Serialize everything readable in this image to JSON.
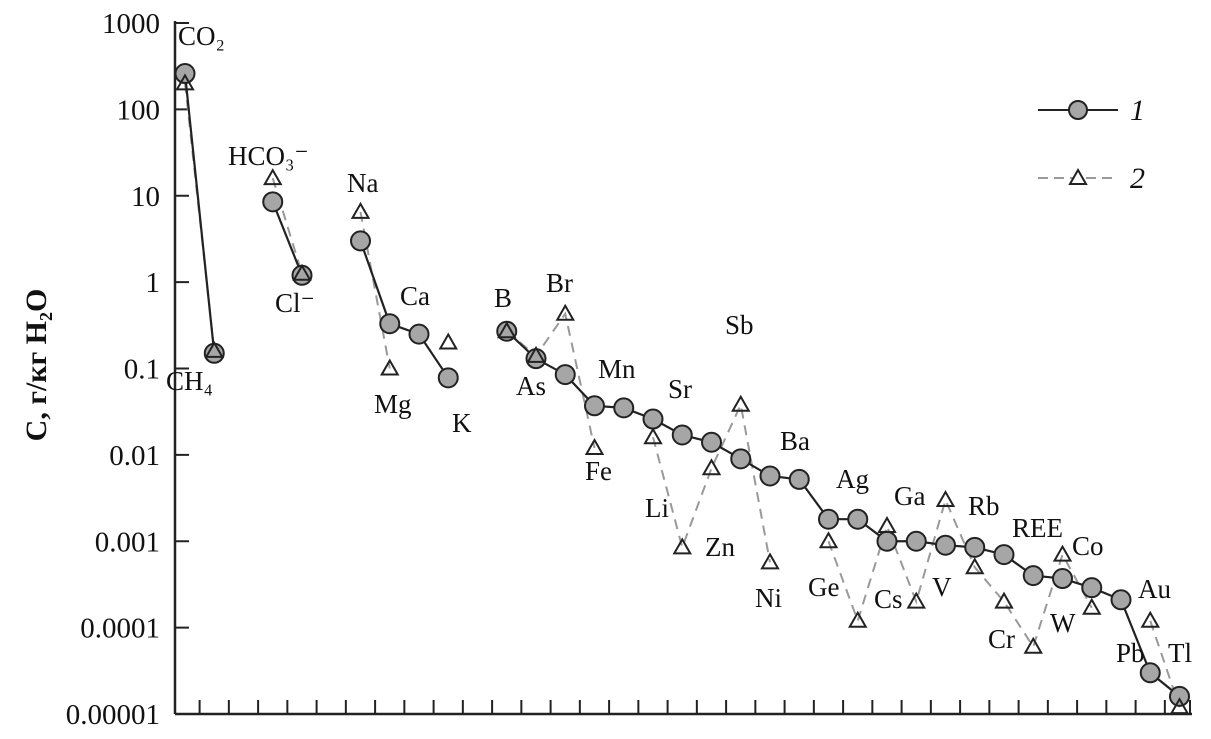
{
  "chart_data": {
    "type": "line",
    "title": "",
    "xlabel": "",
    "ylabel": "C, г/кг H₂O",
    "yscale": "log",
    "ylim": [
      1e-05,
      1000
    ],
    "yticks": [
      "1000",
      "100",
      "10",
      "1",
      "0.1",
      "0.01",
      "0.001",
      "0.0001",
      "0.00001"
    ],
    "ytick_values": [
      1000,
      100,
      10,
      1,
      0.1,
      0.01,
      0.001,
      0.0001,
      1e-05
    ],
    "grid": false,
    "legend_position": "top-right",
    "categories": [
      "CO₂",
      "CH₄",
      "",
      "HCO₃⁻",
      "Cl⁻",
      "",
      "Na",
      "Mg",
      "Ca",
      "K",
      "",
      "B",
      "As",
      "Br",
      "Fe",
      "Mn",
      "Li",
      "Zn",
      "Sr",
      "Sb",
      "Ni",
      "Ba",
      "Ge",
      "Ag",
      "Ga",
      "Cs",
      "V",
      "Rb",
      "Cr",
      "REE",
      "Co",
      "W",
      "Au",
      "Pb",
      "Tl"
    ],
    "series": [
      {
        "name": "1",
        "marker": "circle",
        "line": "solid",
        "color": "#222222",
        "fill": "#a6a6a6",
        "values": [
          260,
          0.15,
          null,
          8.5,
          1.2,
          null,
          3.0,
          0.33,
          0.25,
          0.078,
          null,
          0.27,
          0.13,
          0.085,
          0.037,
          0.035,
          0.026,
          0.017,
          0.014,
          0.009,
          0.0057,
          0.0052,
          0.0018,
          0.0018,
          0.001,
          0.001,
          0.0009,
          0.00085,
          0.0007,
          0.0004,
          0.00037,
          0.00029,
          0.00021,
          3e-05,
          1.6e-05
        ]
      },
      {
        "name": "2",
        "marker": "triangle",
        "line": "dashed",
        "color": "#999999",
        "fill": "#ffffff",
        "values": [
          200,
          0.16,
          null,
          16,
          1.25,
          null,
          6.5,
          0.1,
          null,
          0.2,
          null,
          0.27,
          0.14,
          0.43,
          0.012,
          null,
          0.016,
          0.00085,
          0.007,
          0.038,
          0.00057,
          null,
          0.001,
          0.00012,
          0.0015,
          0.0002,
          0.003,
          0.0005,
          0.0002,
          6e-05,
          0.0007,
          0.00017,
          null,
          0.00012,
          1.2e-05
        ]
      }
    ]
  }
}
